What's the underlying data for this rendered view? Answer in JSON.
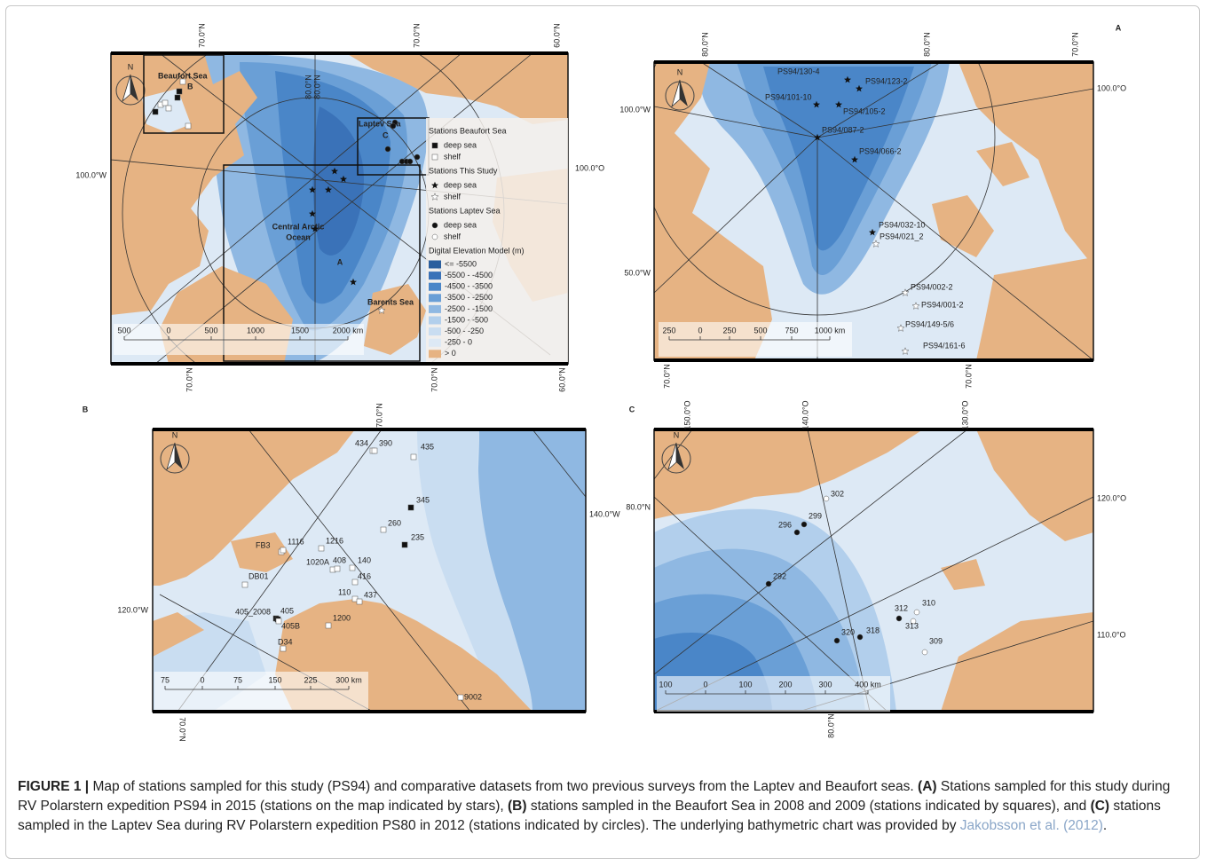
{
  "figure": {
    "panel_letters": [
      "A",
      "B",
      "C"
    ],
    "overview": {
      "north": "N",
      "graticule": [
        "70.0°N",
        "70.0°N",
        "60.0°N",
        "100.0°W",
        "100.0°O",
        "70.0°N",
        "70.0°N",
        "60.0°N",
        "80.0°N",
        "80.0°N"
      ],
      "regions": [
        "Beaufort Sea",
        "B",
        "Laptev Sea",
        "C",
        "Central Arctic",
        "Ocean",
        "A",
        "Barents Sea"
      ],
      "legend": {
        "groups": [
          {
            "title": "Stations Beaufort Sea",
            "items": [
              "deep sea",
              "shelf"
            ]
          },
          {
            "title": "Stations This Study",
            "items": [
              "deep sea",
              "shelf"
            ]
          },
          {
            "title": "Stations Laptev Sea",
            "items": [
              "deep sea",
              "shelf"
            ]
          }
        ],
        "dem_title": "Digital Elevation Model (m)",
        "dem_classes": [
          {
            "label": "<= -5500",
            "color": "#2b5f9e"
          },
          {
            "label": "-5500 - -4500",
            "color": "#3a72b8"
          },
          {
            "label": "-4500 - -3500",
            "color": "#4a86c8"
          },
          {
            "label": "-3500 - -2500",
            "color": "#6a9fd6"
          },
          {
            "label": "-2500 - -1500",
            "color": "#8fb8e2"
          },
          {
            "label": "-1500 - -500",
            "color": "#b2cfec"
          },
          {
            "label": "-500 - -250",
            "color": "#c9ddf1"
          },
          {
            "label": "-250 - 0",
            "color": "#dde9f5"
          },
          {
            "label": "> 0",
            "color": "#e6b383"
          }
        ]
      },
      "scale": [
        "500",
        "0",
        "500",
        "1000",
        "1500",
        "2000 km"
      ]
    },
    "panel_a": {
      "north": "N",
      "graticule": [
        "80.0°N",
        "80.0°N",
        "70.0°N",
        "100.0°W",
        "50.0°W",
        "100.0°O",
        "70.0°N",
        "70.0°N"
      ],
      "stations": [
        "PS94/130-4",
        "PS94/123-2",
        "PS94/101-10",
        "PS94/105-2",
        "PS94/087-2",
        "PS94/066-2",
        "PS94/032-10",
        "PS94/021_2",
        "PS94/002-2",
        "PS94/001-2",
        "PS94/149-5/6",
        "PS94/161-6"
      ],
      "scale": [
        "250",
        "0",
        "250",
        "500",
        "750",
        "1000 km"
      ]
    },
    "panel_b": {
      "north": "N",
      "graticule": [
        "70.0°N",
        "120.0°W",
        "140.0°W",
        "70.0°N"
      ],
      "stations": [
        "434",
        "390",
        "435",
        "345",
        "260",
        "235",
        "FB3",
        "1116",
        "1216",
        "1020A",
        "408",
        "140",
        "416",
        "DB01",
        "110",
        "437",
        "405_2008",
        "405",
        "405B",
        "1200",
        "D34",
        "9002"
      ],
      "scale": [
        "75",
        "0",
        "75",
        "150",
        "225",
        "300 km"
      ]
    },
    "panel_c": {
      "north": "N",
      "graticule": [
        "150.0°O",
        "140.0°O",
        "130.0°O",
        "80.0°N",
        "120.0°O",
        "110.0°O",
        "80.0°N"
      ],
      "stations": [
        "302",
        "299",
        "296",
        "292",
        "312",
        "310",
        "313",
        "320",
        "318",
        "309"
      ],
      "scale": [
        "100",
        "0",
        "100",
        "200",
        "300",
        "400 km"
      ]
    }
  },
  "caption": [
    "FIGURE 1 |",
    " Map of stations sampled for this study (PS94) and comparative datasets from two previous surveys from the Laptev and Beaufort seas. ",
    "(A)",
    " Stations sampled for this study during RV Polarstern expedition PS94 in 2015 (stations on the map indicated by stars), ",
    "(B)",
    " stations sampled in the Beaufort Sea in 2008 and 2009 (stations indicated by squares), and ",
    "(C)",
    " stations sampled in the Laptev Sea during RV Polarstern expedition PS80 in 2012 (stations indicated by circles). The underlying bathymetric chart was provided by ",
    "Jakobsson et al. (2012)",
    "."
  ]
}
